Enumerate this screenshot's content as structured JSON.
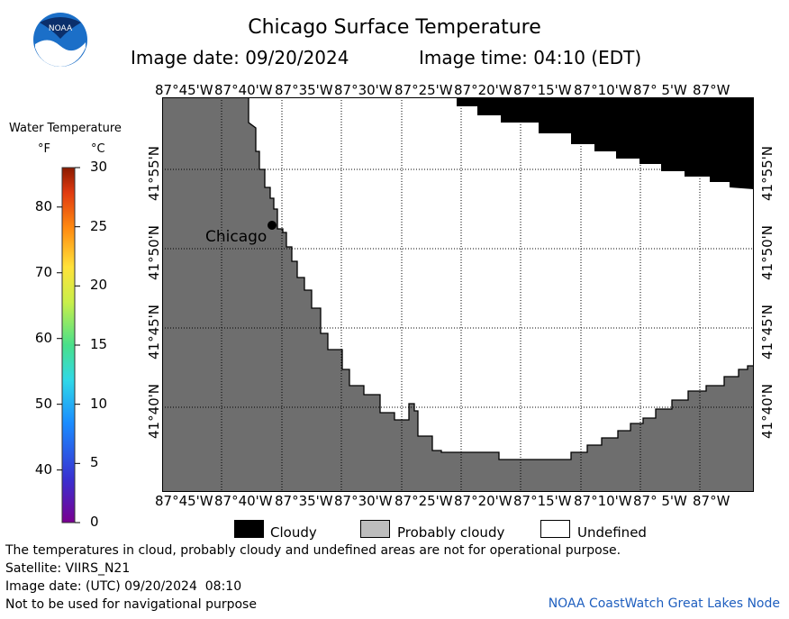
{
  "header": {
    "title": "Chicago Surface Temperature",
    "image_date_label": "Image date: 09/20/2024",
    "image_time_label": "Image time: 04:10 (EDT)"
  },
  "legend_scale": {
    "title": "Water Temperature",
    "unit_f": "°F",
    "unit_c": "°C",
    "ticks_f": [
      "80",
      "70",
      "60",
      "50",
      "40"
    ],
    "ticks_c": [
      "30",
      "25",
      "20",
      "15",
      "10",
      "5",
      "0"
    ]
  },
  "map": {
    "top_lon_labels": [
      "87°45'W",
      "87°40'W",
      "87°35'W",
      "87°30'W",
      "87°25'W",
      "87°20'W",
      "87°15'W",
      "87°10'W",
      "87° 5'W",
      "87°W"
    ],
    "bottom_lon_labels": [
      "87°45'W",
      "87°40'W",
      "87°35'W",
      "87°30'W",
      "87°25'W",
      "87°20'W",
      "87°15'W",
      "87°10'W",
      "87° 5'W",
      "87°W"
    ],
    "lat_labels": [
      "41°55'N",
      "41°50'N",
      "41°45'N",
      "41°40'N"
    ],
    "city_label": "Chicago",
    "colors": {
      "land": "#6e6e6e",
      "cloudy": "#000000",
      "probably_cloudy": "#bdbdbd",
      "undefined": "#ffffff"
    }
  },
  "category_legend": {
    "cloudy": "Cloudy",
    "probably_cloudy": "Probably cloudy",
    "undefined": "Undefined"
  },
  "footer": {
    "disclaimer": "The temperatures in cloud, probably cloudy and undefined areas are not for operational purpose.",
    "satellite": "Satellite: VIIRS_N21",
    "utc_date": "Image date: (UTC) 09/20/2024  08:10",
    "nav_warning": "Not to be used for navigational purpose",
    "credit": "NOAA CoastWatch Great Lakes Node"
  },
  "logo_text": "NOAA"
}
